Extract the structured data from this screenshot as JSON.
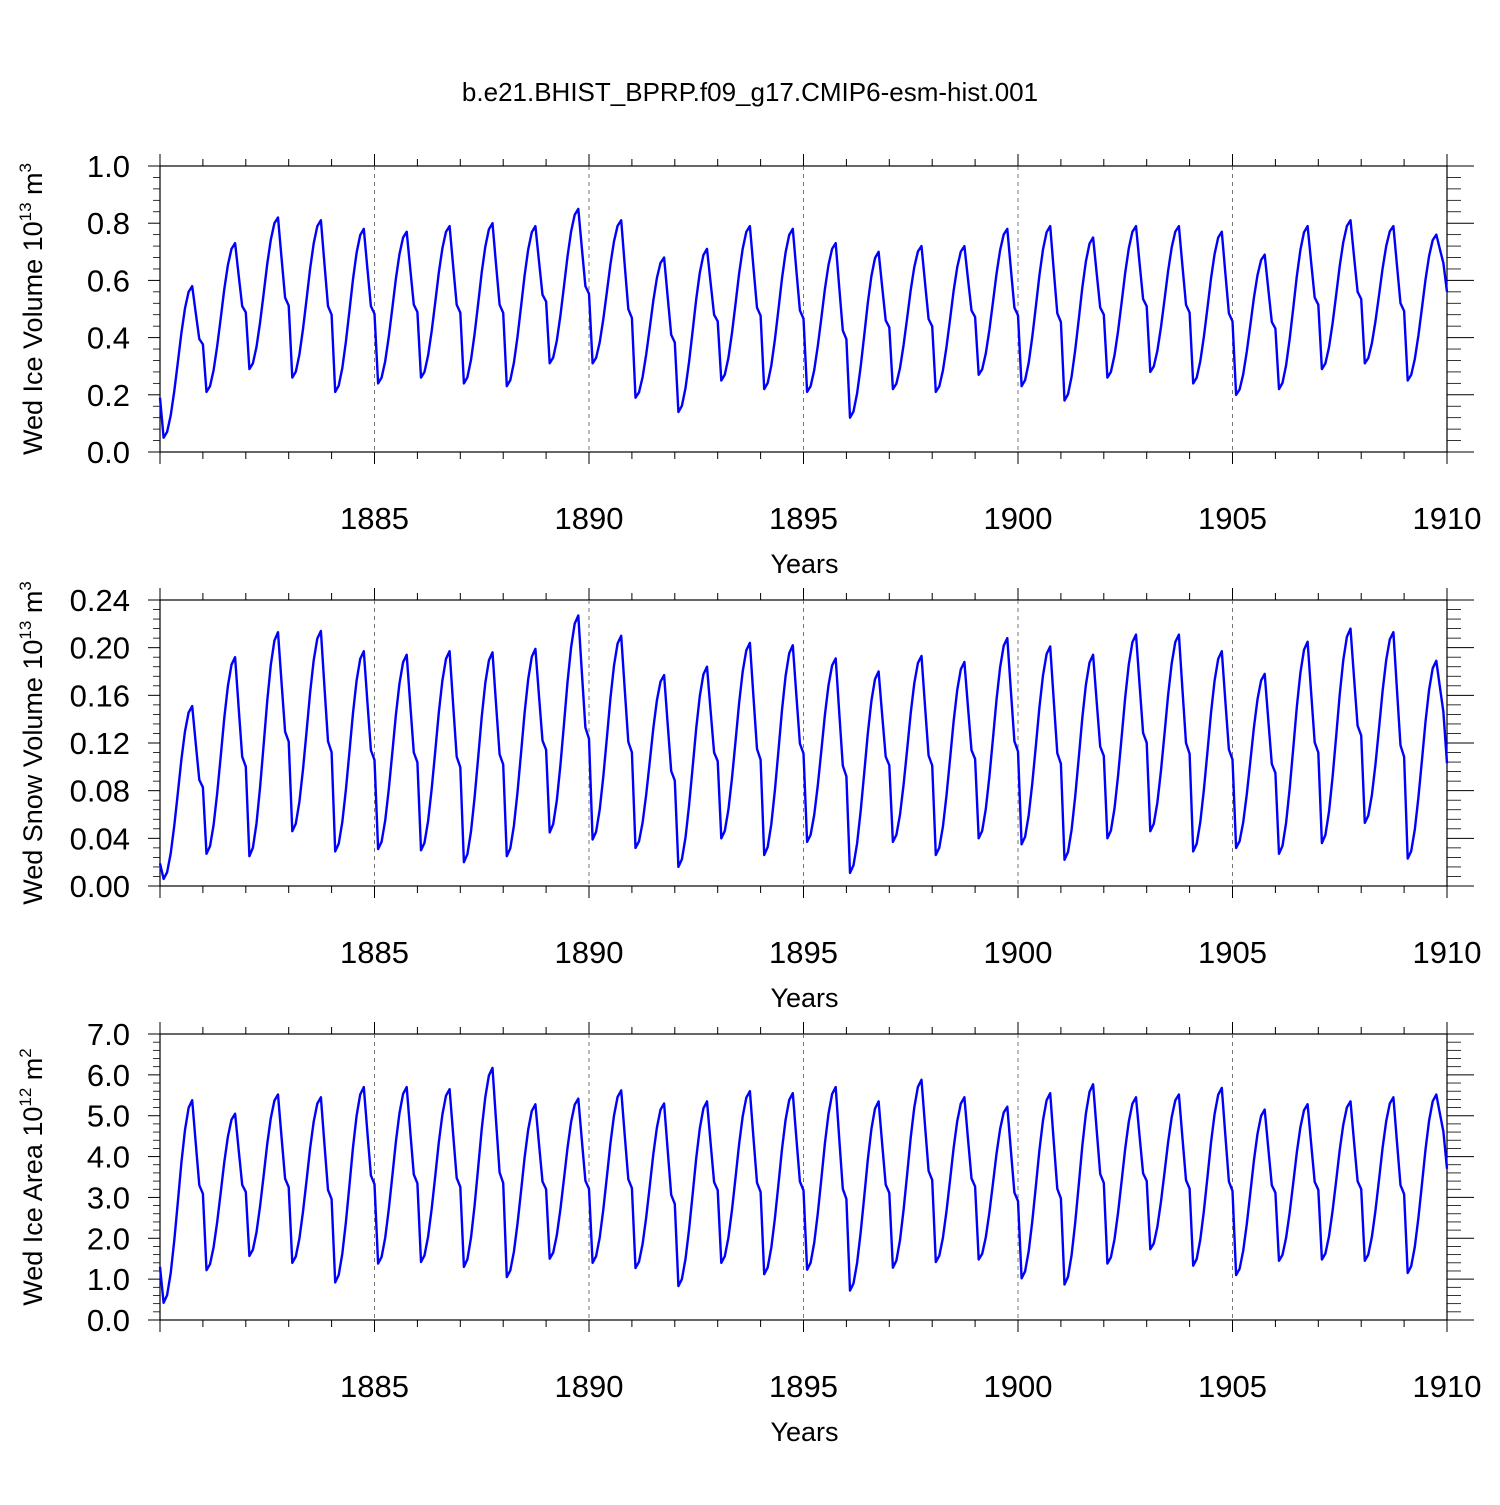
{
  "figure_title": "b.e21.BHIST_BPRP.f09_g17.CMIP6-esm-hist.001",
  "colors": {
    "series": "#0000ff",
    "axes": "#000000",
    "grid": "#555555"
  },
  "chart_data": [
    {
      "type": "line",
      "ylabel_main": "Wed Ice Volume 10",
      "ylabel_exp": "13",
      "ylabel_unit": " m",
      "ylabel_unit_exp": "3",
      "xlabel": "Years",
      "xlim": [
        1880.0,
        1910.0
      ],
      "xticks": [
        "1885",
        "1890",
        "1895",
        "1900",
        "1905",
        "1910"
      ],
      "ylim": [
        0.0,
        1.0
      ],
      "yticks": [
        "0.0",
        "0.2",
        "0.4",
        "0.6",
        "0.8",
        "1.0"
      ],
      "grid": "vertical dashed at labeled years",
      "series": [
        {
          "color": "#0000ff",
          "start_year": 1880.0,
          "step_years": 0.0833333,
          "min_values": [
            0.05,
            0.21,
            0.29,
            0.26,
            0.21,
            0.24,
            0.26,
            0.24,
            0.23,
            0.31,
            0.31,
            0.19,
            0.14,
            0.25,
            0.22,
            0.21,
            0.12,
            0.22,
            0.21,
            0.27,
            0.23,
            0.18,
            0.26,
            0.28,
            0.24,
            0.2,
            0.22,
            0.29,
            0.31,
            0.25
          ],
          "max_values": [
            0.58,
            0.73,
            0.82,
            0.81,
            0.78,
            0.77,
            0.79,
            0.8,
            0.79,
            0.85,
            0.81,
            0.68,
            0.71,
            0.79,
            0.78,
            0.73,
            0.7,
            0.72,
            0.72,
            0.78,
            0.79,
            0.75,
            0.79,
            0.79,
            0.77,
            0.69,
            0.79,
            0.81,
            0.79,
            0.76
          ],
          "start_value": 0.19,
          "end_value": 0.56
        }
      ]
    },
    {
      "type": "line",
      "ylabel_main": "Wed Snow Volume 10",
      "ylabel_exp": "13",
      "ylabel_unit": " m",
      "ylabel_unit_exp": "3",
      "xlabel": "Years",
      "xlim": [
        1880.0,
        1910.0
      ],
      "xticks": [
        "1885",
        "1890",
        "1895",
        "1900",
        "1905",
        "1910"
      ],
      "ylim": [
        0.0,
        0.24
      ],
      "yticks": [
        "0.00",
        "0.04",
        "0.08",
        "0.12",
        "0.16",
        "0.20",
        "0.24"
      ],
      "grid": "vertical dashed at labeled years",
      "series": [
        {
          "color": "#0000ff",
          "start_year": 1880.0,
          "step_years": 0.0833333,
          "min_values": [
            0.006,
            0.027,
            0.025,
            0.046,
            0.029,
            0.031,
            0.03,
            0.02,
            0.025,
            0.045,
            0.039,
            0.032,
            0.016,
            0.04,
            0.026,
            0.037,
            0.011,
            0.037,
            0.026,
            0.04,
            0.035,
            0.022,
            0.04,
            0.046,
            0.029,
            0.032,
            0.027,
            0.036,
            0.053,
            0.023
          ],
          "max_values": [
            0.151,
            0.192,
            0.213,
            0.214,
            0.197,
            0.194,
            0.197,
            0.196,
            0.199,
            0.227,
            0.21,
            0.177,
            0.184,
            0.204,
            0.202,
            0.191,
            0.18,
            0.193,
            0.188,
            0.208,
            0.201,
            0.194,
            0.211,
            0.211,
            0.197,
            0.178,
            0.205,
            0.216,
            0.213,
            0.189
          ],
          "start_value": 0.019,
          "end_value": 0.103
        }
      ]
    },
    {
      "type": "line",
      "ylabel_main": "Wed Ice Area 10",
      "ylabel_exp": "12",
      "ylabel_unit": " m",
      "ylabel_unit_exp": "2",
      "xlabel": "Years",
      "xlim": [
        1880.0,
        1910.0
      ],
      "xticks": [
        "1885",
        "1890",
        "1895",
        "1900",
        "1905",
        "1910"
      ],
      "ylim": [
        0.0,
        7.0
      ],
      "yticks": [
        "0.0",
        "1.0",
        "2.0",
        "3.0",
        "4.0",
        "5.0",
        "6.0",
        "7.0"
      ],
      "grid": "vertical dashed at labeled years",
      "series": [
        {
          "color": "#0000ff",
          "start_year": 1880.0,
          "step_years": 0.0833333,
          "min_values": [
            0.42,
            1.22,
            1.57,
            1.4,
            0.92,
            1.38,
            1.42,
            1.3,
            1.05,
            1.5,
            1.4,
            1.27,
            0.83,
            1.4,
            1.12,
            1.23,
            0.72,
            1.28,
            1.42,
            1.48,
            1.02,
            0.87,
            1.38,
            1.73,
            1.33,
            1.1,
            1.45,
            1.48,
            1.45,
            1.15
          ],
          "max_values": [
            5.38,
            5.05,
            5.52,
            5.45,
            5.7,
            5.7,
            5.65,
            6.17,
            5.28,
            5.42,
            5.62,
            5.3,
            5.35,
            5.6,
            5.55,
            5.7,
            5.35,
            5.88,
            5.45,
            5.22,
            5.55,
            5.77,
            5.45,
            5.52,
            5.68,
            5.15,
            5.28,
            5.35,
            5.45,
            5.52
          ],
          "start_value": 1.3,
          "end_value": 3.7
        }
      ]
    }
  ]
}
